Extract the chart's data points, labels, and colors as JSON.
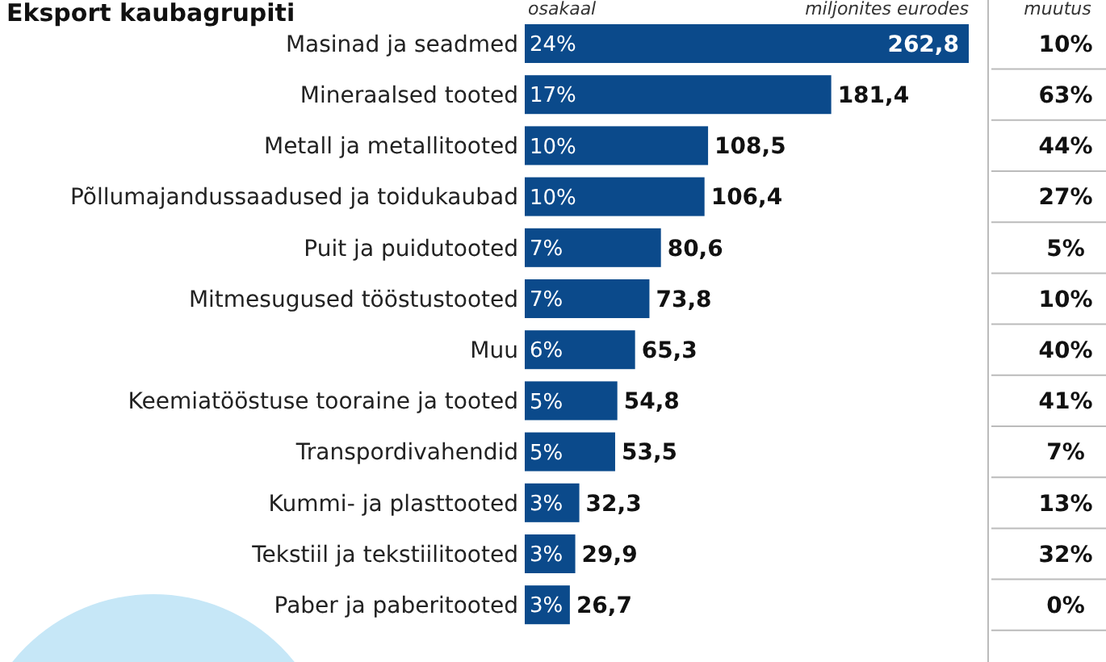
{
  "chart_data": {
    "type": "bar",
    "orientation": "horizontal",
    "title": "Eksport kaubagrupiti",
    "categories": [
      "Masinad ja seadmed",
      "Mineraalsed tooted",
      "Metall ja metallitooted",
      "Põllumajandussaadused ja toidukaubad",
      "Puit ja puidutooted",
      "Mitmesugused tööstustooted",
      "Muu",
      "Keemiatööstuse tooraine ja tooted",
      "Transpordivahendid",
      "Kummi- ja plasttooted",
      "Tekstiil ja tekstiilitooted",
      "Paber ja paberitooted"
    ],
    "values": [
      262.8,
      181.4,
      108.5,
      106.4,
      80.6,
      73.8,
      65.3,
      54.8,
      53.5,
      32.3,
      29.9,
      26.7
    ],
    "value_labels": [
      "262,8",
      "181,4",
      "108,5",
      "106,4",
      "80,6",
      "73,8",
      "65,3",
      "54,8",
      "53,5",
      "32,3",
      "29,9",
      "26,7"
    ],
    "color": "#0b4a8b",
    "annotations": [
      "osakaal",
      "miljonites eurodes",
      "muutus",
      "24%",
      "17%",
      "10%",
      "10%",
      "7%",
      "7%",
      "6%",
      "5%",
      "5%",
      "3%",
      "3%",
      "3%",
      "10%",
      "63%",
      "44%",
      "27%",
      "5%",
      "10%",
      "40%",
      "41%",
      "7%",
      "13%",
      "32%",
      "0%"
    ]
  }
}
